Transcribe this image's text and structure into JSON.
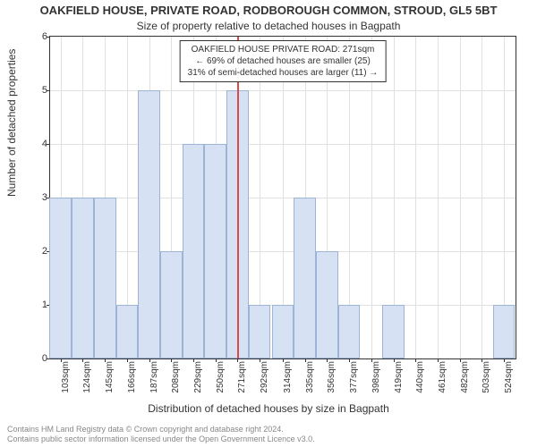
{
  "title_line1": "OAKFIELD HOUSE, PRIVATE ROAD, RODBOROUGH COMMON, STROUD, GL5 5BT",
  "title_line2": "Size of property relative to detached houses in Bagpath",
  "ylabel": "Number of detached properties",
  "xlabel": "Distribution of detached houses by size in Bagpath",
  "footer_line1": "Contains HM Land Registry data © Crown copyright and database right 2024.",
  "footer_line2": "Contains public sector information licensed under the Open Government Licence v3.0.",
  "legend": {
    "line1": "OAKFIELD HOUSE PRIVATE ROAD: 271sqm",
    "line2": "← 69% of detached houses are smaller (25)",
    "line3": "31% of semi-detached houses are larger (11) →"
  },
  "chart": {
    "ylim": [
      0,
      6
    ],
    "ytick_step": 1,
    "xlim": [
      93,
      535
    ],
    "bin_width": 21,
    "background_color": "#ffffff",
    "grid_color": "#e0e0e0",
    "bar_fill": "#d6e2f3",
    "bar_edge": "#9db4d6",
    "reference_line_color": "#d94a4a",
    "reference_value": 271,
    "x_tick_labels": [
      "103sqm",
      "124sqm",
      "145sqm",
      "166sqm",
      "187sqm",
      "208sqm",
      "229sqm",
      "250sqm",
      "271sqm",
      "292sqm",
      "314sqm",
      "335sqm",
      "356sqm",
      "377sqm",
      "398sqm",
      "419sqm",
      "440sqm",
      "461sqm",
      "482sqm",
      "503sqm",
      "524sqm"
    ],
    "x_tick_values": [
      103,
      124,
      145,
      166,
      187,
      208,
      229,
      250,
      271,
      292,
      314,
      335,
      356,
      377,
      398,
      419,
      440,
      461,
      482,
      503,
      524
    ],
    "series": [
      {
        "x": 103,
        "y": 3
      },
      {
        "x": 124,
        "y": 3
      },
      {
        "x": 145,
        "y": 3
      },
      {
        "x": 166,
        "y": 1
      },
      {
        "x": 187,
        "y": 5
      },
      {
        "x": 208,
        "y": 2
      },
      {
        "x": 229,
        "y": 4
      },
      {
        "x": 250,
        "y": 4
      },
      {
        "x": 271,
        "y": 5
      },
      {
        "x": 292,
        "y": 1
      },
      {
        "x": 314,
        "y": 1
      },
      {
        "x": 335,
        "y": 3
      },
      {
        "x": 356,
        "y": 2
      },
      {
        "x": 377,
        "y": 1
      },
      {
        "x": 419,
        "y": 1
      },
      {
        "x": 524,
        "y": 1
      }
    ]
  }
}
